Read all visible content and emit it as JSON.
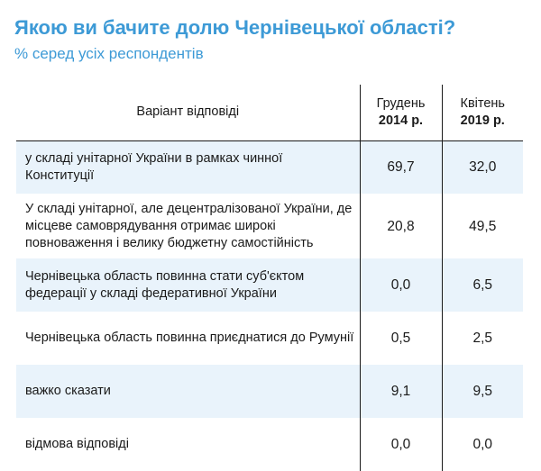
{
  "chart_data": {
    "type": "table",
    "title": "Якою ви бачите долю Чернівецької області?",
    "subtitle": "% серед усіх респондентів",
    "columns": {
      "option": "Варіант відповіді",
      "c2014_line1": "Грудень",
      "c2014_line2": "2014 р.",
      "c2019_line1": "Квітень",
      "c2019_line2": "2019 р."
    },
    "rows": [
      {
        "label": "у складі унітарної України в рамках чинної Конституції",
        "v2014": "69,7",
        "v2019": "32,0"
      },
      {
        "label": "У складі унітарної, але децентралізованої України, де місцеве самоврядування отримає широкі повноваження і велику бюджетну самостійність",
        "v2014": "20,8",
        "v2019": "49,5"
      },
      {
        "label": "Чернівецька область повинна стати суб'єктом федерації у складі федеративної України",
        "v2014": "0,0",
        "v2019": "6,5"
      },
      {
        "label": "Чернівецька область повинна приєднатися до Румунії",
        "v2014": "0,5",
        "v2019": "2,5"
      },
      {
        "label": "важко сказати",
        "v2014": "9,1",
        "v2019": "9,5"
      },
      {
        "label": "відмова відповіді",
        "v2014": "0,0",
        "v2019": "0,0"
      }
    ]
  }
}
